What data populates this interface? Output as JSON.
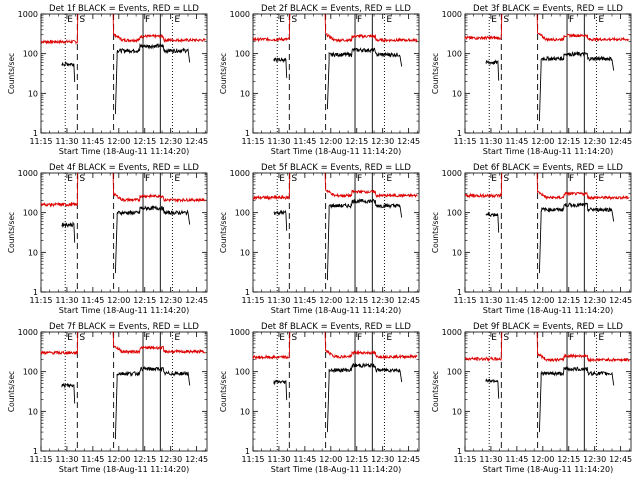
{
  "chart_data": {
    "type": "line",
    "layout": "3x3 grid",
    "x_axis": {
      "label": "Start Time (18-Aug-11 11:14:20)",
      "range": [
        "11:15",
        "12:51"
      ],
      "ticks": [
        "11:15",
        "11:30",
        "11:45",
        "12:00",
        "12:15",
        "12:30",
        "12:45"
      ]
    },
    "y_axis": {
      "label": "Counts/sec",
      "scale": "log",
      "range": [
        1,
        1000
      ],
      "ticks": [
        "1",
        "10",
        "100",
        "1000"
      ]
    },
    "markers": {
      "labels": [
        "E",
        "S",
        "F",
        "E"
      ],
      "dotted": [
        "11:29",
        "12:31"
      ],
      "dashed": [
        "11:36",
        "11:57"
      ],
      "solid": [
        "12:14",
        "12:24"
      ]
    },
    "series_colors": {
      "events": "#000000",
      "lld": "#dd0000"
    },
    "panels": [
      {
        "title": "Det 1f BLACK = Events, RED = LLD",
        "events": 55,
        "lld": 200,
        "events_tail": 120,
        "lld_tail": 220,
        "gap_dip": 3
      },
      {
        "title": "Det 2f BLACK = Events, RED = LLD",
        "events": 70,
        "lld": 230,
        "events_tail": 95,
        "lld_tail": 220,
        "gap_dip": 4
      },
      {
        "title": "Det 3f BLACK = Events, RED = LLD",
        "events": 60,
        "lld": 250,
        "events_tail": 75,
        "lld_tail": 230,
        "gap_dip": 2
      },
      {
        "title": "Det 4f BLACK = Events, RED = LLD",
        "events": 50,
        "lld": 160,
        "events_tail": 100,
        "lld_tail": 210,
        "gap_dip": 3
      },
      {
        "title": "Det 5f BLACK = Events, RED = LLD",
        "events": 100,
        "lld": 240,
        "events_tail": 150,
        "lld_tail": 270,
        "gap_dip": 2
      },
      {
        "title": "Det 6f BLACK = Events, RED = LLD",
        "events": 90,
        "lld": 270,
        "events_tail": 120,
        "lld_tail": 240,
        "gap_dip": 3
      },
      {
        "title": "Det 7f BLACK = Events, RED = LLD",
        "events": 45,
        "lld": 300,
        "events_tail": 90,
        "lld_tail": 320,
        "gap_dip": 2
      },
      {
        "title": "Det 8f BLACK = Events, RED = LLD",
        "events": 55,
        "lld": 230,
        "events_tail": 110,
        "lld_tail": 240,
        "gap_dip": 3
      },
      {
        "title": "Det 9f BLACK = Events, RED = LLD",
        "events": 60,
        "lld": 210,
        "events_tail": 90,
        "lld_tail": 200,
        "gap_dip": 3
      }
    ]
  }
}
